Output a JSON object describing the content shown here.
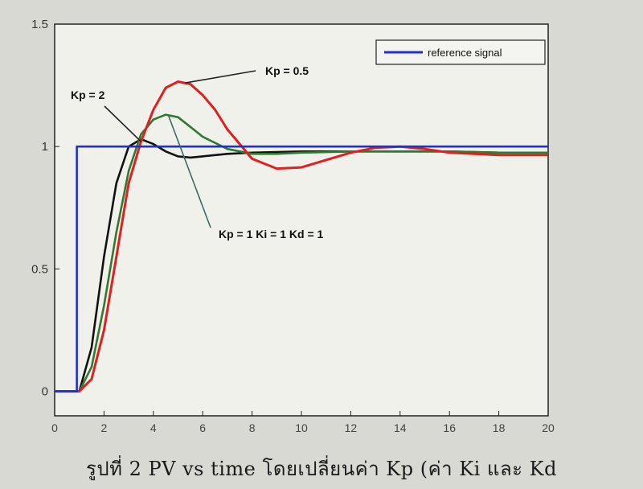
{
  "chart_data": {
    "type": "line",
    "xlim": [
      0,
      20
    ],
    "ylim": [
      -0.1,
      1.5
    ],
    "xticks": [
      0,
      2,
      4,
      6,
      8,
      10,
      12,
      14,
      16,
      18,
      20
    ],
    "yticks": [
      0,
      0.5,
      1,
      1.5
    ],
    "ytick_labels": [
      "0",
      "0.5",
      "1",
      "1.5"
    ],
    "grid": false,
    "legend": {
      "position": "top-right",
      "entries": [
        "reference signal"
      ]
    },
    "series": [
      {
        "name": "reference signal",
        "color": "#1f2fd6",
        "x": [
          0,
          0.9,
          0.9,
          20
        ],
        "y": [
          0,
          0,
          1,
          1
        ]
      },
      {
        "color": "#111111",
        "x": [
          0,
          1,
          1.5,
          2,
          2.5,
          3,
          3.5,
          4,
          4.5,
          5,
          5.5,
          6,
          7,
          8,
          10,
          12,
          14,
          16,
          18,
          20
        ],
        "y": [
          0,
          0,
          0.18,
          0.55,
          0.85,
          1.0,
          1.03,
          1.01,
          0.98,
          0.96,
          0.955,
          0.96,
          0.97,
          0.975,
          0.98,
          0.98,
          0.98,
          0.98,
          0.975,
          0.975
        ]
      },
      {
        "color": "#2e7a2e",
        "x": [
          0,
          1,
          1.5,
          2,
          2.5,
          3,
          3.5,
          4,
          4.5,
          5,
          5.5,
          6,
          7,
          8,
          9,
          10,
          12,
          14,
          16,
          18,
          20
        ],
        "y": [
          0,
          0,
          0.1,
          0.35,
          0.65,
          0.9,
          1.05,
          1.11,
          1.13,
          1.12,
          1.08,
          1.04,
          0.99,
          0.97,
          0.97,
          0.975,
          0.98,
          0.98,
          0.98,
          0.975,
          0.975
        ]
      },
      {
        "color": "#e02020",
        "x": [
          0,
          1,
          1.5,
          2,
          2.5,
          3,
          3.5,
          4,
          4.5,
          5,
          5.5,
          6,
          6.5,
          7,
          8,
          9,
          10,
          11,
          12,
          13,
          14,
          15,
          16,
          18,
          20
        ],
        "y": [
          0,
          0,
          0.05,
          0.25,
          0.55,
          0.85,
          1.02,
          1.15,
          1.24,
          1.265,
          1.255,
          1.21,
          1.15,
          1.07,
          0.95,
          0.91,
          0.915,
          0.945,
          0.975,
          0.995,
          1.0,
          0.99,
          0.975,
          0.965,
          0.965
        ]
      }
    ],
    "annotations": [
      {
        "text": "Kp = 0.5",
        "target": [
          5.3,
          1.26
        ]
      },
      {
        "text": "Kp = 2",
        "target": [
          3.5,
          1.02
        ]
      },
      {
        "text": "Kp = 1  Ki = 1  Kd = 1",
        "target": [
          4.6,
          1.13
        ]
      }
    ]
  },
  "caption": "รูปที่ 2 PV  vs  time  โดยเปลี่ยนค่า Kp  (ค่า Ki  และ Kd"
}
